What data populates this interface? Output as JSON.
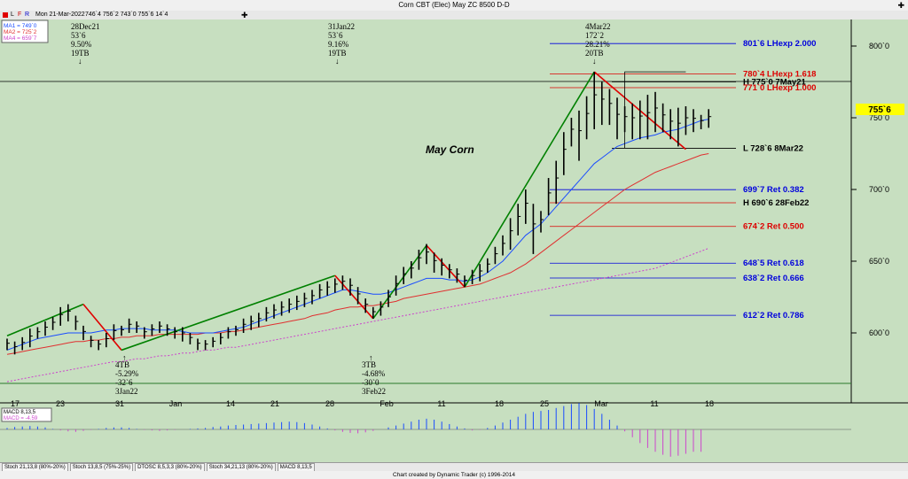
{
  "title": "Corn CBT (Elec) May ZC 8500 D-D",
  "toolbar": {
    "flags": [
      "L",
      "F",
      "R"
    ],
    "date": "Mon 21-Mar-2022",
    "ohlc": "746`4  756`2  743`0  755`6  14`4"
  },
  "legend": {
    "ma1": "MA1 = 749`0",
    "ma2": "MA2 = 725`2",
    "ma4": "MA4 = 659`7",
    "macd_title": "MACD 8,13,5",
    "macd_val": "MACD = -4.59"
  },
  "tabs": [
    "Stoch 21,13,8 (80%-20%)",
    "Stoch 13,8,5 (75%-25%)",
    "DTOSC 8,5,3,3 (80%-20%)",
    "Stoch 34,21,13 (80%-20%)",
    "MACD 8,13,5"
  ],
  "footer": "Chart created by Dynamic Trader  (c) 1996-2014",
  "colors": {
    "up": "#008000",
    "down": "#e00000",
    "ma1": "#1a4cff",
    "ma2": "#e03030",
    "ma4": "#cc44cc",
    "blue_lvl": "#0000dd",
    "red_lvl": "#dd0000",
    "price_box": "#ffff00"
  },
  "chart_data": {
    "type": "bar",
    "title": "Corn CBT (Elec) May ZC 8500 D-D",
    "annotation_center": "May Corn",
    "y_ticks": [
      "800`0",
      "750`0",
      "700`0",
      "650`0",
      "600`0"
    ],
    "y_tick_values": [
      800,
      750,
      700,
      650,
      600
    ],
    "x_ticks": [
      "17",
      "23",
      "31",
      "Jan",
      "14",
      "21",
      "28",
      "Feb",
      "11",
      "18",
      "25",
      "Mar",
      "11",
      "18"
    ],
    "current_price": "755`6",
    "pivot_labels": [
      {
        "lines": [
          "28Dec21",
          "53`6",
          "9.50%",
          "19TB"
        ],
        "arrow": "↓"
      },
      {
        "lines": [
          "31Jan22",
          "53`6",
          "9.16%",
          "19TB"
        ],
        "arrow": "↓"
      },
      {
        "lines": [
          "4Mar22",
          "172`2",
          "28.21%",
          "20TB"
        ],
        "arrow": "↓"
      },
      {
        "lines": [
          "4TB",
          "-5.29%",
          "-32`6",
          "3Jan22"
        ],
        "arrow": "↑"
      },
      {
        "lines": [
          "3TB",
          "-4.68%",
          "-30`0",
          "3Feb22"
        ],
        "arrow": "↑"
      }
    ],
    "levels": [
      {
        "label": "801`6 LHexp 2.000",
        "value": 801.75,
        "color": "blue"
      },
      {
        "label": "780`4 LHexp 1.618",
        "value": 780.5,
        "color": "red"
      },
      {
        "label": "H 775`0 7May21",
        "value": 775.0,
        "color": "black"
      },
      {
        "label": "771`0 LHexp 1.000",
        "value": 771.0,
        "color": "red"
      },
      {
        "label": "L 728`6 8Mar22",
        "value": 728.75,
        "color": "black"
      },
      {
        "label": "699`7 Ret 0.382",
        "value": 699.875,
        "color": "blue"
      },
      {
        "label": "H 690`6 28Feb22",
        "value": 690.75,
        "color": "black"
      },
      {
        "label": "674`2 Ret 0.500",
        "value": 674.25,
        "color": "red"
      },
      {
        "label": "648`5 Ret 0.618",
        "value": 648.625,
        "color": "blue"
      },
      {
        "label": "638`2 Ret 0.666",
        "value": 638.25,
        "color": "blue"
      },
      {
        "label": "612`2 Ret 0.786",
        "value": 612.25,
        "color": "blue"
      }
    ],
    "bars": [
      [
        596,
        588
      ],
      [
        594,
        585
      ],
      [
        597,
        588
      ],
      [
        603,
        590
      ],
      [
        604,
        596
      ],
      [
        608,
        598
      ],
      [
        611,
        602
      ],
      [
        618,
        605
      ],
      [
        620,
        608
      ],
      [
        612,
        602
      ],
      [
        605,
        595
      ],
      [
        598,
        590
      ],
      [
        595,
        588
      ],
      [
        600,
        590
      ],
      [
        606,
        595
      ],
      [
        605,
        598
      ],
      [
        610,
        600
      ],
      [
        608,
        600
      ],
      [
        604,
        596
      ],
      [
        606,
        598
      ],
      [
        608,
        600
      ],
      [
        606,
        598
      ],
      [
        604,
        596
      ],
      [
        604,
        594
      ],
      [
        600,
        592
      ],
      [
        596,
        588
      ],
      [
        595,
        588
      ],
      [
        597,
        590
      ],
      [
        600,
        592
      ],
      [
        604,
        596
      ],
      [
        605,
        598
      ],
      [
        610,
        600
      ],
      [
        612,
        602
      ],
      [
        614,
        604
      ],
      [
        618,
        608
      ],
      [
        620,
        610
      ],
      [
        622,
        612
      ],
      [
        624,
        614
      ],
      [
        626,
        616
      ],
      [
        628,
        618
      ],
      [
        630,
        620
      ],
      [
        634,
        624
      ],
      [
        636,
        626
      ],
      [
        638,
        628
      ],
      [
        640,
        630
      ],
      [
        638,
        626
      ],
      [
        632,
        620
      ],
      [
        624,
        614
      ],
      [
        618,
        610
      ],
      [
        622,
        612
      ],
      [
        630,
        618
      ],
      [
        640,
        626
      ],
      [
        646,
        634
      ],
      [
        650,
        638
      ],
      [
        658,
        644
      ],
      [
        662,
        648
      ],
      [
        656,
        642
      ],
      [
        652,
        640
      ],
      [
        648,
        638
      ],
      [
        645,
        635
      ],
      [
        640,
        632
      ],
      [
        644,
        634
      ],
      [
        648,
        636
      ],
      [
        652,
        642
      ],
      [
        660,
        648
      ],
      [
        668,
        654
      ],
      [
        680,
        658
      ],
      [
        690,
        668
      ],
      [
        700,
        676
      ],
      [
        690,
        655
      ],
      [
        685,
        670
      ],
      [
        708,
        682
      ],
      [
        720,
        690
      ],
      [
        740,
        710
      ],
      [
        750,
        730
      ],
      [
        755,
        720
      ],
      [
        765,
        735
      ],
      [
        782,
        742
      ],
      [
        775,
        745
      ],
      [
        770,
        745
      ],
      [
        764,
        735
      ],
      [
        758,
        740
      ],
      [
        760,
        735
      ],
      [
        762,
        735
      ],
      [
        766,
        735
      ],
      [
        768,
        740
      ],
      [
        760,
        740
      ],
      [
        756,
        735
      ],
      [
        757,
        730
      ],
      [
        758,
        738
      ],
      [
        756,
        740
      ],
      [
        752,
        742
      ],
      [
        756,
        743
      ]
    ],
    "zigzag": [
      {
        "price": 598,
        "dir": "up"
      },
      {
        "price": 620,
        "dir": "down"
      },
      {
        "price": 588,
        "dir": "up"
      },
      {
        "price": 640,
        "dir": "down"
      },
      {
        "price": 610,
        "dir": "up"
      },
      {
        "price": 661,
        "dir": "down"
      },
      {
        "price": 632,
        "dir": "up"
      },
      {
        "price": 782,
        "dir": "down"
      },
      {
        "price": 728,
        "dir": "end"
      }
    ],
    "ma1": [
      588,
      590,
      592,
      594,
      596,
      597,
      598,
      599,
      600,
      600,
      600,
      600,
      601,
      602,
      602,
      603,
      603,
      603,
      603,
      602,
      602,
      602,
      602,
      601,
      600,
      600,
      600,
      600,
      601,
      602,
      603,
      604,
      606,
      608,
      610,
      612,
      614,
      616,
      618,
      620,
      622,
      624,
      626,
      628,
      630,
      630,
      629,
      628,
      627,
      627,
      628,
      630,
      632,
      634,
      636,
      638,
      638,
      638,
      637,
      637,
      636,
      637,
      639,
      642,
      646,
      650,
      656,
      662,
      668,
      672,
      676,
      682,
      688,
      694,
      700,
      706,
      712,
      718,
      722,
      726,
      730,
      732,
      734,
      736,
      737,
      738,
      740,
      741,
      742,
      744,
      746,
      748,
      749
    ],
    "ma2": [
      585,
      586,
      587,
      588,
      589,
      590,
      591,
      592,
      593,
      594,
      594,
      595,
      595,
      596,
      596,
      597,
      597,
      598,
      598,
      598,
      599,
      599,
      599,
      599,
      599,
      599,
      600,
      600,
      600,
      601,
      601,
      602,
      603,
      604,
      605,
      606,
      607,
      608,
      609,
      610,
      612,
      613,
      614,
      616,
      617,
      618,
      618,
      619,
      619,
      620,
      621,
      622,
      624,
      625,
      626,
      627,
      628,
      629,
      630,
      631,
      632,
      633,
      634,
      636,
      638,
      640,
      642,
      645,
      648,
      652,
      656,
      660,
      664,
      668,
      672,
      676,
      680,
      684,
      688,
      692,
      696,
      700,
      703,
      706,
      709,
      712,
      714,
      716,
      718,
      720,
      722,
      724,
      725
    ],
    "ma4": [
      566,
      567,
      568,
      569,
      570,
      571,
      572,
      573,
      574,
      575,
      576,
      577,
      578,
      579,
      580,
      580,
      581,
      582,
      582,
      583,
      584,
      584,
      585,
      586,
      586,
      587,
      588,
      588,
      589,
      590,
      590,
      591,
      592,
      593,
      594,
      595,
      596,
      597,
      598,
      599,
      600,
      601,
      602,
      603,
      604,
      605,
      606,
      607,
      608,
      609,
      610,
      611,
      612,
      613,
      614,
      615,
      616,
      617,
      618,
      619,
      620,
      621,
      622,
      623,
      624,
      625,
      626,
      627,
      628,
      629,
      630,
      631,
      632,
      633,
      634,
      635,
      636,
      637,
      638,
      639,
      640,
      641,
      642,
      643,
      644,
      645,
      647,
      649,
      651,
      653,
      655,
      657,
      659
    ],
    "macd": [
      0.3,
      0.5,
      0.6,
      0.7,
      0.6,
      0.4,
      0.1,
      -0.2,
      -0.4,
      -0.5,
      -0.3,
      -0.1,
      0.1,
      0.3,
      0.4,
      0.4,
      0.3,
      0.1,
      -0.1,
      -0.2,
      -0.3,
      -0.2,
      -0.1,
      0.0,
      0.1,
      0.2,
      0.3,
      0.5,
      0.6,
      0.8,
      0.9,
      1.0,
      1.1,
      1.2,
      1.3,
      1.4,
      1.5,
      1.6,
      1.5,
      1.3,
      1.0,
      0.6,
      0.2,
      -0.2,
      -0.5,
      -0.7,
      -0.8,
      -0.6,
      -0.3,
      0.0,
      0.4,
      0.8,
      1.2,
      1.6,
      2.0,
      2.2,
      2.0,
      1.6,
      1.1,
      0.6,
      0.2,
      -0.2,
      -0.1,
      0.3,
      0.8,
      1.4,
      2.0,
      2.6,
      3.2,
      3.6,
      3.8,
      4.0,
      4.4,
      4.8,
      5.2,
      5.4,
      5.0,
      4.2,
      3.2,
      2.0,
      0.8,
      -0.4,
      -1.6,
      -2.8,
      -3.8,
      -4.6,
      -5.2,
      -5.6,
      -5.4,
      -5.0,
      -4.6,
      -4.59
    ]
  }
}
